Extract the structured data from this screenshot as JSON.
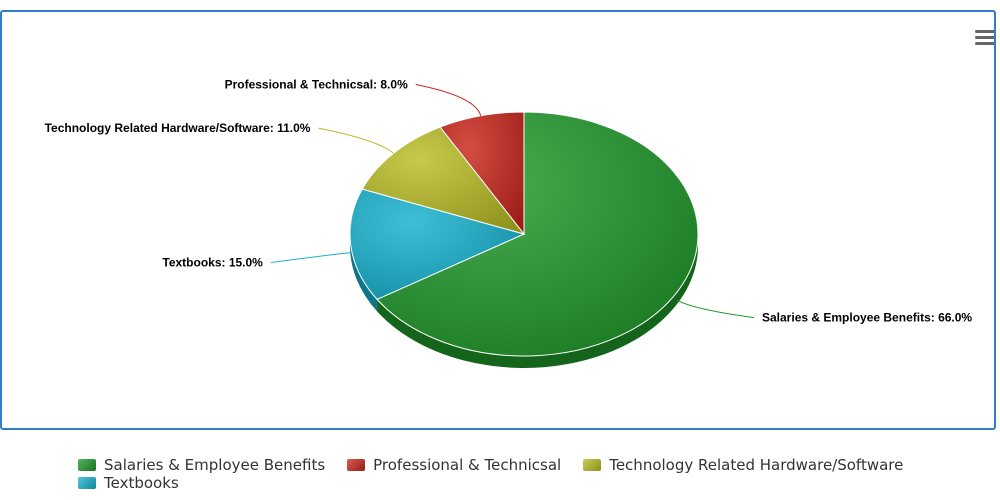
{
  "chart_data": {
    "type": "pie",
    "title": "",
    "categories": [
      "Salaries & Employee Benefits",
      "Professional & Technicsal",
      "Technology Related Hardware/Software",
      "Textbooks"
    ],
    "values": [
      66.0,
      8.0,
      11.0,
      15.0
    ],
    "value_labels": [
      "Salaries & Employee Benefits: 66.0%",
      "Professional & Technicsal: 8.0%",
      "Technology Related Hardware/Software: 11.0%",
      "Textbooks: 15.0%"
    ],
    "colors": [
      "#1f9a2a",
      "#c9261b",
      "#b9bd24",
      "#15b2cf"
    ],
    "legend_position": "bottom",
    "three_d": true
  },
  "toolbar": {
    "menu_icon": "hamburger-menu-icon"
  }
}
